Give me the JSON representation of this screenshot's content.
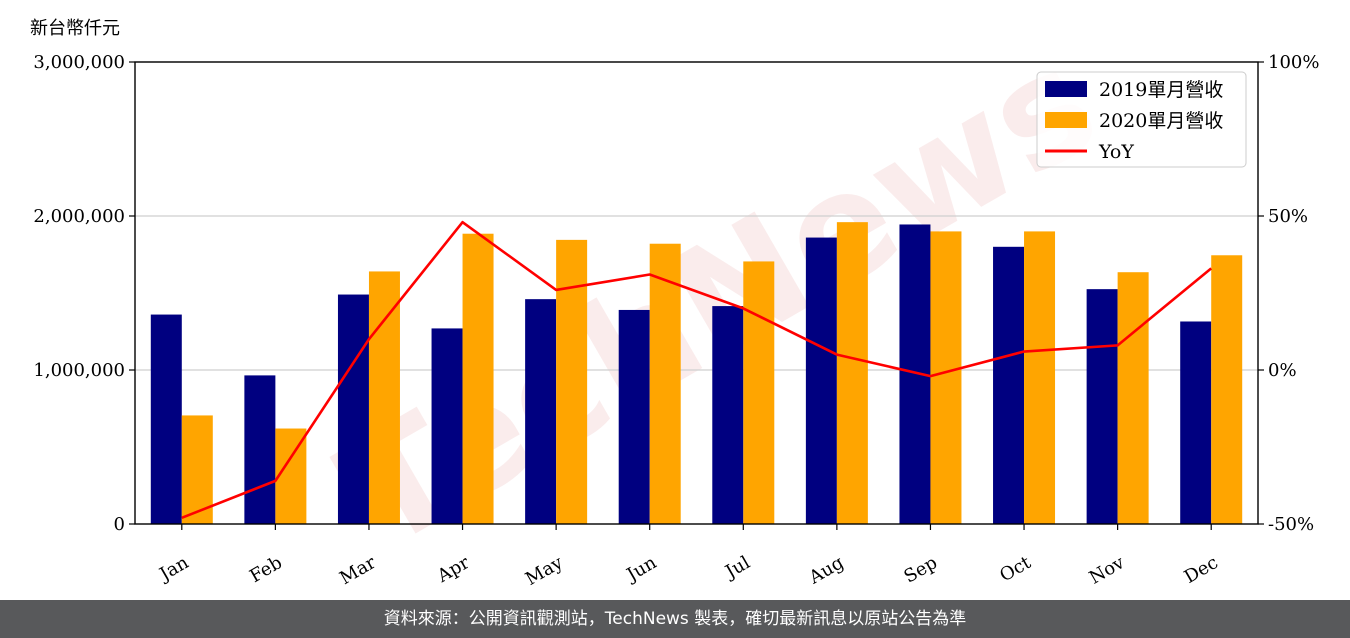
{
  "chart_data": {
    "type": "bar",
    "title": "",
    "ylabel": "新台幣仟元",
    "categories": [
      "Jan",
      "Feb",
      "Mar",
      "Apr",
      "May",
      "Jun",
      "Jul",
      "Aug",
      "Sep",
      "Oct",
      "Nov",
      "Dec"
    ],
    "series": [
      {
        "name": "2019單月營收",
        "type": "bar",
        "color": "#000080",
        "axis": "left",
        "values": [
          1360000,
          965000,
          1490000,
          1270000,
          1460000,
          1390000,
          1415000,
          1860000,
          1945000,
          1800000,
          1525000,
          1315000
        ]
      },
      {
        "name": "2020單月營收",
        "type": "bar",
        "color": "#ffa500",
        "axis": "left",
        "values": [
          705000,
          620000,
          1640000,
          1885000,
          1845000,
          1820000,
          1705000,
          1960000,
          1900000,
          1900000,
          1635000,
          1745000
        ]
      },
      {
        "name": "YoY",
        "type": "line",
        "color": "#ff0000",
        "axis": "right",
        "values": [
          -48,
          -36,
          10,
          48,
          26,
          31,
          20,
          5,
          -2,
          6,
          8,
          33
        ]
      }
    ],
    "ylim": [
      0,
      3000000
    ],
    "yticks": [
      0,
      1000000,
      2000000,
      3000000
    ],
    "ytick_labels": [
      "0",
      "1,000,000",
      "2,000,000",
      "3,000,000"
    ],
    "y2lim": [
      -50,
      100
    ],
    "y2ticks": [
      -50,
      0,
      50,
      100
    ],
    "y2tick_labels": [
      "-50%",
      "0%",
      "50%",
      "100%"
    ],
    "grid": "horizontal",
    "legend_position": "top-right"
  },
  "watermark": "TechNews",
  "footer": "資料來源：公開資訊觀測站，TechNews 製表，確切最新訊息以原站公告為準"
}
